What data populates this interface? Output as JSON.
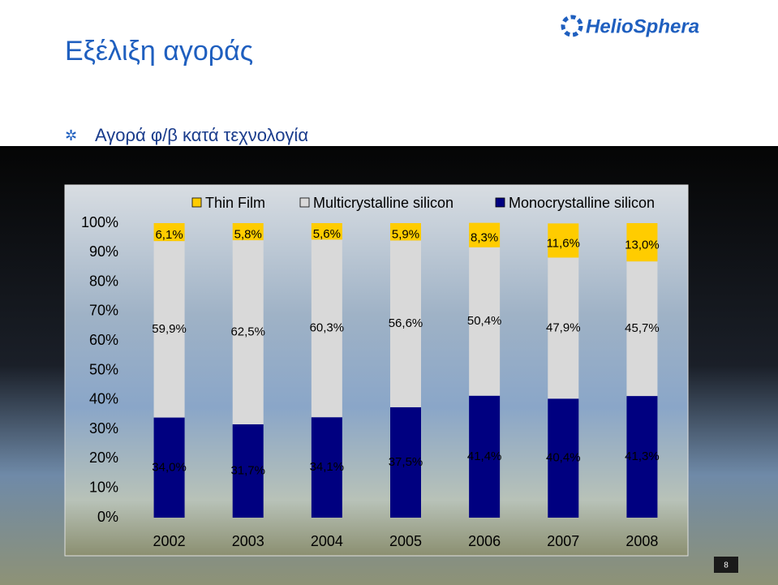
{
  "header": {
    "title": "Εξέλιξη αγοράς",
    "logo": "HelioSphera"
  },
  "subtitle": "Αγορά φ/β κατά τεχνολογία",
  "page_number": "8",
  "chart_data": {
    "type": "stacked_bar",
    "categories": [
      "2002",
      "2003",
      "2004",
      "2005",
      "2006",
      "2007",
      "2008"
    ],
    "series": [
      {
        "name": "Monocrystalline silicon",
        "color": "#000080",
        "values": [
          34.0,
          31.7,
          34.1,
          37.5,
          41.4,
          40.4,
          41.3
        ],
        "value_labels": [
          "34,0%",
          "31,7%",
          "34,1%",
          "37,5%",
          "41,4%",
          "40,4%",
          "41,3%"
        ]
      },
      {
        "name": "Multicrystalline silicon",
        "color": "#d9d9d9",
        "values": [
          59.9,
          62.5,
          60.3,
          56.6,
          50.4,
          47.9,
          45.7
        ],
        "value_labels": [
          "59,9%",
          "62,5%",
          "60,3%",
          "56,6%",
          "50,4%",
          "47,9%",
          "45,7%"
        ]
      },
      {
        "name": "Thin Film",
        "color": "#ffcc00",
        "values": [
          6.1,
          5.8,
          5.6,
          5.9,
          8.3,
          11.6,
          13.0
        ],
        "value_labels": [
          "6,1%",
          "5,8%",
          "5,6%",
          "5,9%",
          "8,3%",
          "11,6%",
          "13,0%"
        ]
      }
    ],
    "legend_order": [
      2,
      1,
      0
    ],
    "ylim": [
      0,
      100
    ],
    "yticks": [
      {
        "value": 0,
        "label": "0%"
      },
      {
        "value": 10,
        "label": "10%"
      },
      {
        "value": 20,
        "label": "20%"
      },
      {
        "value": 30,
        "label": "30%"
      },
      {
        "value": 40,
        "label": "40%"
      },
      {
        "value": 50,
        "label": "50%"
      },
      {
        "value": 60,
        "label": "60%"
      },
      {
        "value": 70,
        "label": "70%"
      },
      {
        "value": 80,
        "label": "80%"
      },
      {
        "value": 90,
        "label": "90%"
      },
      {
        "value": 100,
        "label": "100%"
      }
    ]
  }
}
